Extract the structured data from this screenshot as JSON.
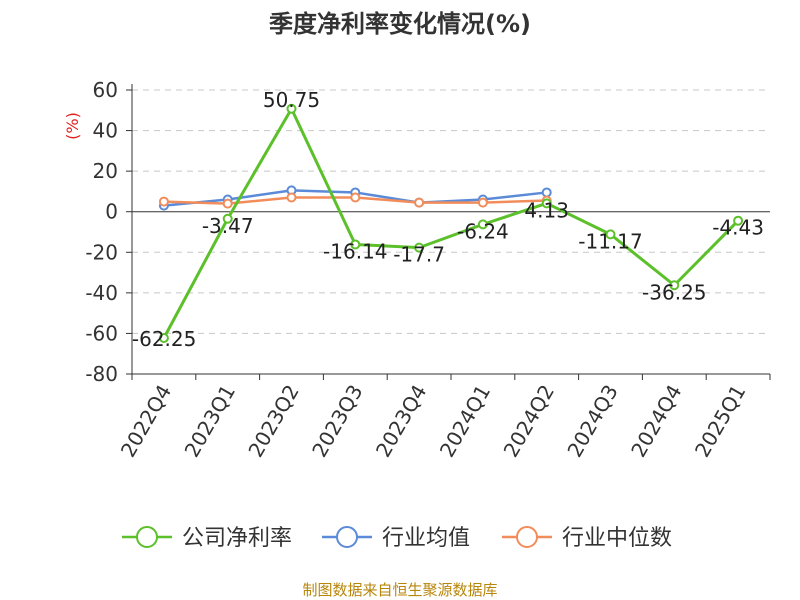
{
  "chart_data": {
    "type": "line",
    "title": "季度净利率变化情况(%)",
    "ylabel": "(%)",
    "xlabel": "",
    "categories": [
      "2022Q4",
      "2023Q1",
      "2023Q2",
      "2023Q3",
      "2023Q4",
      "2024Q1",
      "2024Q2",
      "2024Q3",
      "2024Q4",
      "2025Q1"
    ],
    "ylim": [
      -80,
      60
    ],
    "yticks": [
      60,
      40,
      20,
      0,
      -20,
      -40,
      -60,
      -80
    ],
    "grid": true,
    "legend_position": "bottom",
    "series": [
      {
        "name": "公司净利率",
        "color": "#5bc02a",
        "values": [
          -62.25,
          -3.47,
          50.75,
          -16.14,
          -17.7,
          -6.24,
          4.13,
          -11.17,
          -36.25,
          -4.43
        ],
        "labels": [
          "-62.25",
          "-3.47",
          "50.75",
          "-16.14",
          "-17.7",
          "-6.24",
          "4.13",
          "-11.17",
          "-36.25",
          "-4.43"
        ]
      },
      {
        "name": "行业均值",
        "color": "#5b8bd8",
        "values": [
          3,
          6,
          10.5,
          9.5,
          4.5,
          6,
          9.5,
          null,
          null,
          null
        ]
      },
      {
        "name": "行业中位数",
        "color": "#f28d5b",
        "values": [
          5,
          4,
          7,
          7,
          4.5,
          4.5,
          5.5,
          null,
          null,
          null
        ]
      }
    ],
    "source": "制图数据来自恒生聚源数据库"
  }
}
